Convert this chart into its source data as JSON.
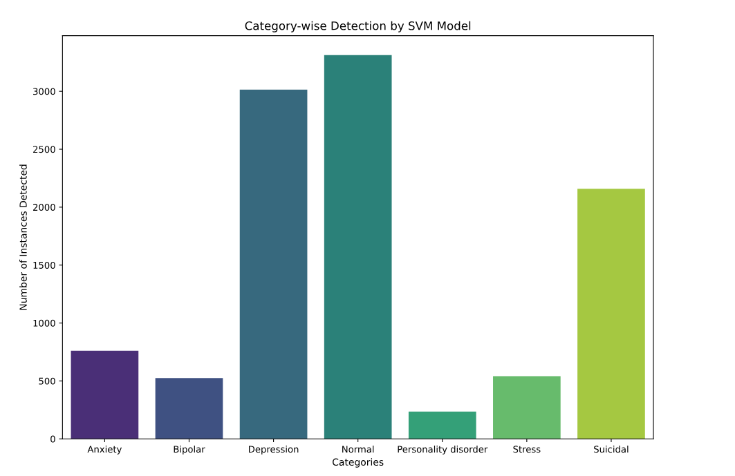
{
  "chart_data": {
    "type": "bar",
    "title": "Category-wise Detection by SVM Model",
    "xlabel": "Categories",
    "ylabel": "Number of Instances Detected",
    "categories": [
      "Anxiety",
      "Bipolar",
      "Depression",
      "Normal",
      "Personality disorder",
      "Stress",
      "Suicidal"
    ],
    "values": [
      760,
      525,
      3015,
      3313,
      235,
      541,
      2159
    ],
    "colors": [
      "#4a2f77",
      "#3f5182",
      "#37697e",
      "#2b8179",
      "#34a078",
      "#67bb6c",
      "#a5c841"
    ],
    "ylim": [
      0,
      3480
    ],
    "yticks": [
      0,
      500,
      1000,
      1500,
      2000,
      2500,
      3000
    ],
    "grid": false,
    "legend": false
  }
}
